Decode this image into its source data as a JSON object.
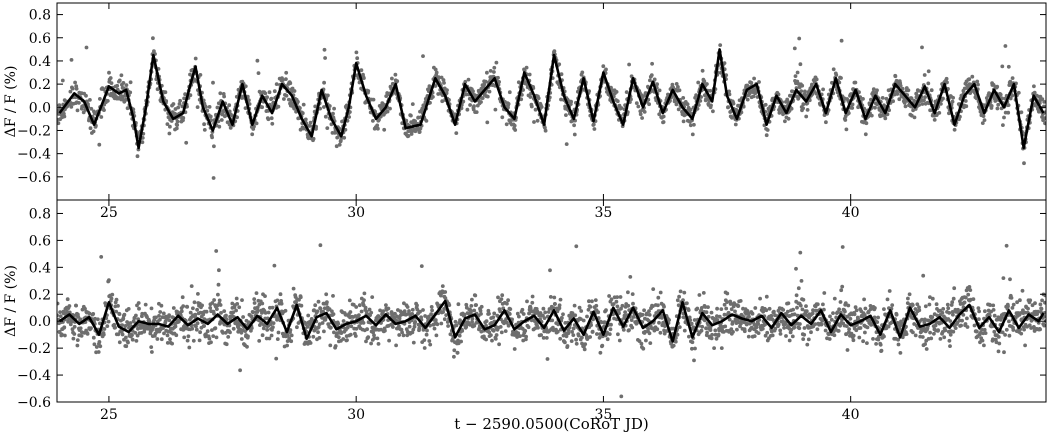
{
  "chart_data": [
    {
      "type": "scatter",
      "panel": "top",
      "xlabel": "",
      "ylabel": "ΔF / F (%)",
      "xlim": [
        23.95,
        43.95
      ],
      "ylim": [
        -0.8,
        0.9
      ],
      "xticks": [
        25,
        30,
        35,
        40
      ],
      "yticks": [
        -0.6,
        -0.4,
        -0.2,
        0.0,
        0.2,
        0.4,
        0.6,
        0.8
      ],
      "xtick_labels": [
        "25",
        "30",
        "35",
        "40"
      ],
      "ytick_labels": [
        "−0.6",
        "−0.4",
        "−0.2",
        "0.0",
        "0.2",
        "0.4",
        "0.6",
        "0.8"
      ],
      "grid": false,
      "series": [
        {
          "role": "observations",
          "marker": "dot",
          "color": "#6e6e6e"
        },
        {
          "role": "model fit",
          "marker": "line",
          "color": "#000000",
          "x": [
            24.0,
            24.3,
            24.5,
            24.7,
            25.0,
            25.2,
            25.35,
            25.5,
            25.6,
            25.75,
            25.9,
            26.1,
            26.3,
            26.5,
            26.65,
            26.75,
            26.9,
            27.1,
            27.3,
            27.5,
            27.7,
            27.9,
            28.1,
            28.3,
            28.5,
            28.7,
            28.9,
            29.1,
            29.3,
            29.5,
            29.7,
            29.85,
            30.0,
            30.2,
            30.4,
            30.6,
            30.8,
            31.0,
            31.3,
            31.6,
            31.8,
            32.0,
            32.2,
            32.4,
            32.6,
            32.8,
            33.0,
            33.2,
            33.4,
            33.6,
            33.8,
            34.0,
            34.2,
            34.4,
            34.6,
            34.8,
            35.0,
            35.2,
            35.4,
            35.6,
            35.8,
            36.0,
            36.2,
            36.4,
            36.6,
            36.8,
            37.0,
            37.2,
            37.35,
            37.5,
            37.7,
            37.9,
            38.1,
            38.3,
            38.5,
            38.7,
            38.9,
            39.1,
            39.3,
            39.5,
            39.7,
            39.9,
            40.1,
            40.3,
            40.5,
            40.7,
            40.9,
            41.1,
            41.3,
            41.5,
            41.7,
            41.9,
            42.1,
            42.3,
            42.5,
            42.7,
            42.9,
            43.1,
            43.3,
            43.5,
            43.7,
            43.9
          ],
          "y": [
            -0.05,
            0.12,
            0.05,
            -0.15,
            0.18,
            0.12,
            0.15,
            -0.1,
            -0.35,
            0.0,
            0.45,
            0.05,
            -0.1,
            -0.05,
            0.2,
            0.35,
            0.0,
            -0.2,
            0.05,
            -0.15,
            0.2,
            -0.15,
            0.1,
            -0.05,
            0.2,
            0.1,
            -0.1,
            -0.25,
            0.15,
            -0.1,
            -0.25,
            0.0,
            0.38,
            0.1,
            -0.1,
            0.0,
            0.2,
            -0.18,
            -0.15,
            0.25,
            0.1,
            -0.15,
            0.2,
            0.05,
            0.15,
            0.25,
            0.0,
            -0.1,
            0.3,
            0.1,
            -0.15,
            0.45,
            0.1,
            -0.1,
            0.25,
            -0.12,
            0.3,
            0.05,
            -0.15,
            0.25,
            0.0,
            0.22,
            -0.05,
            0.15,
            0.0,
            -0.1,
            0.2,
            0.05,
            0.5,
            0.1,
            -0.1,
            0.15,
            0.2,
            -0.15,
            0.1,
            -0.05,
            0.15,
            0.05,
            0.2,
            -0.05,
            0.25,
            -0.05,
            0.15,
            -0.1,
            0.1,
            -0.05,
            0.2,
            0.1,
            0.0,
            0.18,
            -0.05,
            0.2,
            -0.15,
            0.1,
            0.2,
            -0.05,
            0.15,
            0.0,
            0.2,
            -0.35,
            0.1,
            -0.05
          ]
        }
      ]
    },
    {
      "type": "scatter",
      "panel": "bottom",
      "xlabel": "t − 2590.0500(CoRoT JD)",
      "ylabel": "ΔF / F (%)",
      "xlim": [
        23.95,
        43.95
      ],
      "ylim": [
        -0.6,
        0.9
      ],
      "xticks": [
        25,
        30,
        35,
        40
      ],
      "yticks": [
        -0.6,
        -0.4,
        -0.2,
        0.0,
        0.2,
        0.4,
        0.6,
        0.8
      ],
      "xtick_labels": [
        "25",
        "30",
        "35",
        "40"
      ],
      "ytick_labels": [
        "−0.6",
        "−0.4",
        "−0.2",
        "0.0",
        "0.2",
        "0.4",
        "0.6",
        "0.8"
      ],
      "grid": false,
      "series": [
        {
          "role": "observations",
          "marker": "dot",
          "color": "#6e6e6e"
        },
        {
          "role": "model fit",
          "marker": "line",
          "color": "#000000",
          "x": [
            24.0,
            24.2,
            24.4,
            24.6,
            24.8,
            25.0,
            25.2,
            25.4,
            25.6,
            25.8,
            26.0,
            26.2,
            26.4,
            26.6,
            26.8,
            27.0,
            27.2,
            27.4,
            27.6,
            27.8,
            28.0,
            28.2,
            28.4,
            28.6,
            28.8,
            29.0,
            29.2,
            29.4,
            29.6,
            29.8,
            30.0,
            30.2,
            30.4,
            30.6,
            30.8,
            31.0,
            31.2,
            31.4,
            31.6,
            31.8,
            32.0,
            32.2,
            32.4,
            32.6,
            32.8,
            33.0,
            33.2,
            33.4,
            33.6,
            33.8,
            34.0,
            34.2,
            34.4,
            34.6,
            34.8,
            35.0,
            35.2,
            35.4,
            35.6,
            35.8,
            36.0,
            36.2,
            36.4,
            36.6,
            36.8,
            37.0,
            37.2,
            37.4,
            37.6,
            37.8,
            38.0,
            38.2,
            38.4,
            38.6,
            38.8,
            39.0,
            39.2,
            39.4,
            39.6,
            39.8,
            40.0,
            40.2,
            40.4,
            40.6,
            40.8,
            41.0,
            41.2,
            41.4,
            41.6,
            41.8,
            42.0,
            42.2,
            42.4,
            42.6,
            42.8,
            43.0,
            43.2,
            43.4,
            43.6,
            43.8,
            43.9
          ],
          "y": [
            0.0,
            0.05,
            -0.02,
            0.03,
            -0.1,
            0.14,
            -0.04,
            -0.08,
            0.0,
            -0.02,
            -0.02,
            -0.04,
            0.04,
            -0.03,
            0.02,
            -0.02,
            0.05,
            -0.02,
            0.03,
            -0.06,
            0.04,
            -0.02,
            0.1,
            -0.08,
            0.12,
            -0.13,
            0.03,
            0.06,
            -0.06,
            -0.02,
            0.0,
            0.04,
            -0.03,
            0.05,
            -0.02,
            0.0,
            0.04,
            -0.05,
            0.05,
            0.15,
            -0.12,
            0.02,
            0.05,
            -0.06,
            -0.03,
            0.08,
            -0.06,
            0.0,
            0.04,
            -0.05,
            0.08,
            -0.07,
            0.02,
            -0.1,
            0.07,
            -0.1,
            0.1,
            -0.04,
            0.1,
            -0.05,
            0.0,
            0.08,
            -0.15,
            0.14,
            -0.12,
            0.06,
            -0.03,
            0.0,
            0.05,
            0.02,
            0.0,
            0.04,
            -0.05,
            0.06,
            -0.03,
            0.04,
            -0.02,
            0.08,
            -0.08,
            0.05,
            -0.03,
            0.0,
            0.04,
            -0.1,
            0.08,
            -0.12,
            0.1,
            -0.04,
            -0.02,
            0.03,
            -0.05,
            0.05,
            0.12,
            -0.05,
            0.03,
            -0.08,
            0.08,
            -0.05,
            0.05,
            0.0,
            0.06
          ]
        }
      ]
    }
  ]
}
